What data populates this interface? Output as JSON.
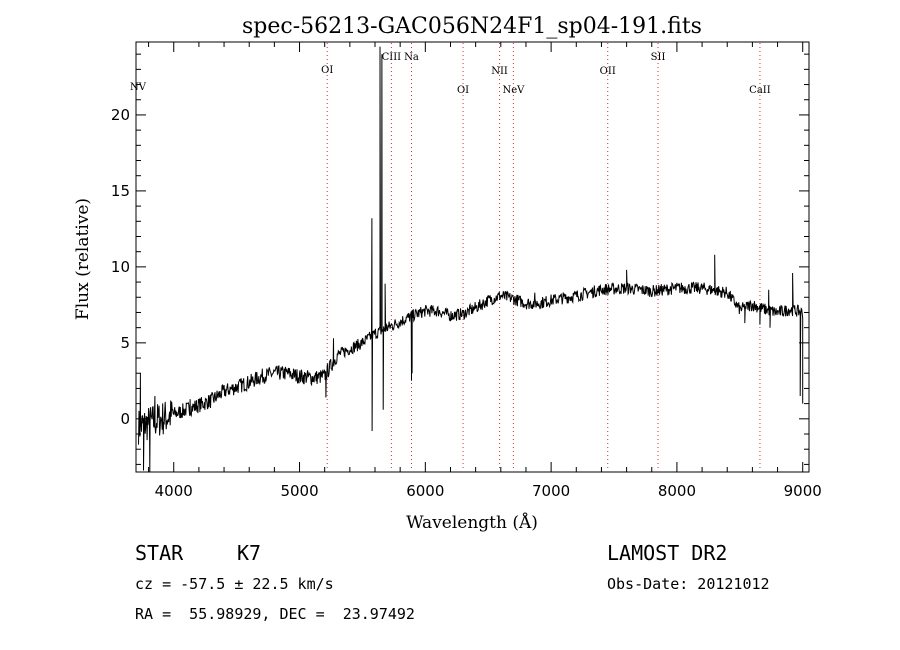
{
  "chart_data": {
    "type": "line",
    "title": "spec-56213-GAC056N24F1_sp04-191.fits",
    "xlabel": "Wavelength (Å)",
    "ylabel": "Flux (relative)",
    "xlim": [
      3700,
      9050
    ],
    "ylim": [
      -3.5,
      24.8
    ],
    "xticks": [
      4000,
      5000,
      6000,
      7000,
      8000,
      9000
    ],
    "yticks": [
      0,
      5,
      10,
      15,
      20
    ],
    "grid": false,
    "line_color": "#000000",
    "marker_color": "#cc3333",
    "continuum": [
      [
        3720,
        -0.5
      ],
      [
        3800,
        -0.3
      ],
      [
        3900,
        0.0
      ],
      [
        4000,
        0.3
      ],
      [
        4100,
        0.6
      ],
      [
        4200,
        0.9
      ],
      [
        4300,
        1.2
      ],
      [
        4400,
        1.8
      ],
      [
        4500,
        2.1
      ],
      [
        4600,
        2.4
      ],
      [
        4700,
        2.8
      ],
      [
        4800,
        3.0
      ],
      [
        4900,
        3.0
      ],
      [
        5000,
        2.8
      ],
      [
        5100,
        2.7
      ],
      [
        5200,
        2.8
      ],
      [
        5300,
        4.2
      ],
      [
        5400,
        4.6
      ],
      [
        5500,
        5.0
      ],
      [
        5600,
        5.6
      ],
      [
        5700,
        6.0
      ],
      [
        5800,
        6.4
      ],
      [
        5900,
        6.8
      ],
      [
        6000,
        7.1
      ],
      [
        6100,
        7.1
      ],
      [
        6200,
        6.8
      ],
      [
        6300,
        6.9
      ],
      [
        6400,
        7.3
      ],
      [
        6500,
        7.8
      ],
      [
        6600,
        8.1
      ],
      [
        6700,
        7.9
      ],
      [
        6800,
        7.6
      ],
      [
        6900,
        7.6
      ],
      [
        7000,
        7.8
      ],
      [
        7200,
        8.1
      ],
      [
        7400,
        8.5
      ],
      [
        7600,
        8.6
      ],
      [
        7800,
        8.4
      ],
      [
        8000,
        8.6
      ],
      [
        8200,
        8.6
      ],
      [
        8400,
        8.3
      ],
      [
        8500,
        7.2
      ],
      [
        8600,
        7.5
      ],
      [
        8700,
        7.2
      ],
      [
        8800,
        7.0
      ],
      [
        8900,
        7.2
      ],
      [
        9000,
        7.0
      ]
    ],
    "features": [
      [
        3735,
        3.0
      ],
      [
        3760,
        -3.4
      ],
      [
        3810,
        -3.5
      ],
      [
        3850,
        1.5
      ],
      [
        4130,
        1.3
      ],
      [
        5210,
        1.4
      ],
      [
        5270,
        5.3
      ],
      [
        5575,
        13.2
      ],
      [
        5577,
        -0.8
      ],
      [
        5640,
        24.5
      ],
      [
        5655,
        24.0
      ],
      [
        5665,
        0.6
      ],
      [
        5680,
        8.9
      ],
      [
        5890,
        2.5
      ],
      [
        5895,
        3.0
      ],
      [
        6870,
        8.3
      ],
      [
        7600,
        9.8
      ],
      [
        8300,
        10.8
      ],
      [
        8350,
        8.0
      ],
      [
        8540,
        6.3
      ],
      [
        8660,
        6.2
      ],
      [
        8730,
        8.5
      ],
      [
        8740,
        6.0
      ],
      [
        8920,
        9.6
      ],
      [
        8980,
        1.5
      ],
      [
        9000,
        1.0
      ]
    ],
    "line_markers": [
      {
        "label": "NV",
        "x": 3700
      },
      {
        "label": "OI",
        "x": 5220
      },
      {
        "label": "CIII",
        "x": 5730
      },
      {
        "label": "Na",
        "x": 5890
      },
      {
        "label": "OI",
        "x": 6300
      },
      {
        "label": "NII",
        "x": 6590
      },
      {
        "label": "NeV",
        "x": 6700
      },
      {
        "label": "OII",
        "x": 7450
      },
      {
        "label": "SII",
        "x": 7850
      },
      {
        "label": "CaII",
        "x": 8660
      }
    ]
  },
  "info": {
    "object_class": "STAR",
    "subclass": "K7",
    "survey": "LAMOST DR2",
    "redshift": "cz = -57.5 ± 22.5 km/s",
    "obs_date": "Obs-Date: 20121012",
    "coords": "RA =  55.98929, DEC =  23.97492"
  }
}
